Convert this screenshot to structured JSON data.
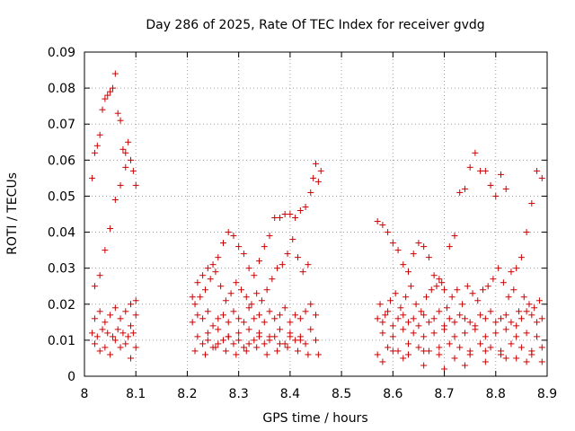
{
  "chart_data": {
    "type": "scatter",
    "title": "Day 286 of 2025, Rate Of TEC Index for receiver gvdg",
    "xlabel": "GPS time / hours",
    "ylabel": "ROTI / TECUs",
    "xlim": [
      8.0,
      8.9
    ],
    "ylim": [
      0.0,
      0.09
    ],
    "xticks": [
      "8",
      "8.1",
      "8.2",
      "8.3",
      "8.4",
      "8.5",
      "8.6",
      "8.7",
      "8.8",
      "8.9"
    ],
    "yticks": [
      "0",
      "0.01",
      "0.02",
      "0.03",
      "0.04",
      "0.05",
      "0.06",
      "0.07",
      "0.08",
      "0.09"
    ],
    "grid": true,
    "marker": "+",
    "color": "#cc0000",
    "series": [
      {
        "name": "ROTI",
        "x": [
          8.015,
          8.02,
          8.025,
          8.03,
          8.035,
          8.04,
          8.045,
          8.05,
          8.055,
          8.06,
          8.065,
          8.07,
          8.075,
          8.08,
          8.085,
          8.09,
          8.095,
          8.1,
          8.02,
          8.03,
          8.04,
          8.05,
          8.06,
          8.07,
          8.08,
          8.09,
          8.1,
          8.02,
          8.03,
          8.04,
          8.05,
          8.06,
          8.07,
          8.08,
          8.09,
          8.1,
          8.015,
          8.025,
          8.035,
          8.045,
          8.055,
          8.065,
          8.075,
          8.085,
          8.095,
          8.02,
          8.04,
          8.06,
          8.08,
          8.1,
          8.03,
          8.05,
          8.07,
          8.09,
          8.21,
          8.22,
          8.23,
          8.24,
          8.25,
          8.26,
          8.27,
          8.28,
          8.29,
          8.3,
          8.31,
          8.32,
          8.33,
          8.34,
          8.35,
          8.36,
          8.37,
          8.38,
          8.39,
          8.4,
          8.41,
          8.42,
          8.43,
          8.44,
          8.45,
          8.46,
          8.215,
          8.225,
          8.235,
          8.245,
          8.255,
          8.265,
          8.275,
          8.285,
          8.295,
          8.305,
          8.315,
          8.325,
          8.335,
          8.345,
          8.355,
          8.365,
          8.375,
          8.385,
          8.395,
          8.405,
          8.415,
          8.425,
          8.435,
          8.445,
          8.455,
          8.21,
          8.22,
          8.23,
          8.24,
          8.25,
          8.26,
          8.27,
          8.28,
          8.29,
          8.3,
          8.31,
          8.32,
          8.33,
          8.34,
          8.35,
          8.36,
          8.37,
          8.38,
          8.39,
          8.4,
          8.41,
          8.42,
          8.43,
          8.44,
          8.45,
          8.22,
          8.24,
          8.26,
          8.28,
          8.3,
          8.32,
          8.34,
          8.36,
          8.38,
          8.4,
          8.42,
          8.44,
          8.23,
          8.25,
          8.27,
          8.29,
          8.31,
          8.33,
          8.35,
          8.37,
          8.39,
          8.41,
          8.43,
          8.45,
          8.215,
          8.235,
          8.255,
          8.275,
          8.295,
          8.315,
          8.335,
          8.355,
          8.375,
          8.395,
          8.415,
          8.435,
          8.455,
          8.24,
          8.26,
          8.28,
          8.3,
          8.32,
          8.34,
          8.36,
          8.38,
          8.4,
          8.42,
          8.57,
          8.58,
          8.59,
          8.6,
          8.61,
          8.62,
          8.63,
          8.64,
          8.65,
          8.66,
          8.67,
          8.68,
          8.69,
          8.7,
          8.71,
          8.72,
          8.73,
          8.74,
          8.75,
          8.76,
          8.77,
          8.78,
          8.79,
          8.8,
          8.81,
          8.82,
          8.83,
          8.84,
          8.85,
          8.86,
          8.87,
          8.88,
          8.89,
          8.575,
          8.585,
          8.595,
          8.605,
          8.615,
          8.625,
          8.635,
          8.645,
          8.655,
          8.665,
          8.675,
          8.685,
          8.695,
          8.705,
          8.715,
          8.725,
          8.735,
          8.745,
          8.755,
          8.765,
          8.775,
          8.785,
          8.795,
          8.805,
          8.815,
          8.825,
          8.835,
          8.845,
          8.855,
          8.865,
          8.875,
          8.885,
          8.57,
          8.58,
          8.59,
          8.6,
          8.61,
          8.62,
          8.63,
          8.64,
          8.65,
          8.66,
          8.67,
          8.68,
          8.69,
          8.7,
          8.71,
          8.72,
          8.73,
          8.74,
          8.75,
          8.76,
          8.77,
          8.78,
          8.79,
          8.8,
          8.81,
          8.82,
          8.83,
          8.84,
          8.85,
          8.86,
          8.87,
          8.88,
          8.89,
          8.58,
          8.6,
          8.62,
          8.64,
          8.66,
          8.68,
          8.7,
          8.72,
          8.74,
          8.76,
          8.78,
          8.8,
          8.82,
          8.84,
          8.86,
          8.88,
          8.59,
          8.61,
          8.63,
          8.65,
          8.67,
          8.69,
          8.71,
          8.73,
          8.75,
          8.77,
          8.79,
          8.81,
          8.83,
          8.85,
          8.87,
          8.89,
          8.57,
          8.6,
          8.63,
          8.66,
          8.69,
          8.72,
          8.75,
          8.78,
          8.81,
          8.84,
          8.87,
          8.58,
          8.62,
          8.66,
          8.7,
          8.74,
          8.78,
          8.82,
          8.86,
          8.89
        ],
        "y": [
          0.055,
          0.062,
          0.064,
          0.067,
          0.074,
          0.077,
          0.078,
          0.079,
          0.08,
          0.084,
          0.073,
          0.071,
          0.063,
          0.062,
          0.065,
          0.06,
          0.057,
          0.053,
          0.025,
          0.028,
          0.035,
          0.041,
          0.049,
          0.053,
          0.058,
          0.02,
          0.021,
          0.016,
          0.018,
          0.015,
          0.017,
          0.019,
          0.016,
          0.018,
          0.014,
          0.017,
          0.012,
          0.011,
          0.013,
          0.012,
          0.011,
          0.013,
          0.012,
          0.011,
          0.012,
          0.009,
          0.008,
          0.01,
          0.009,
          0.008,
          0.007,
          0.006,
          0.008,
          0.005,
          0.022,
          0.026,
          0.028,
          0.03,
          0.031,
          0.033,
          0.037,
          0.04,
          0.039,
          0.036,
          0.034,
          0.03,
          0.028,
          0.032,
          0.036,
          0.039,
          0.044,
          0.044,
          0.045,
          0.045,
          0.044,
          0.046,
          0.047,
          0.051,
          0.059,
          0.057,
          0.02,
          0.022,
          0.024,
          0.027,
          0.029,
          0.025,
          0.021,
          0.023,
          0.026,
          0.024,
          0.022,
          0.02,
          0.023,
          0.021,
          0.024,
          0.027,
          0.03,
          0.031,
          0.034,
          0.038,
          0.033,
          0.029,
          0.031,
          0.055,
          0.054,
          0.015,
          0.017,
          0.016,
          0.018,
          0.014,
          0.016,
          0.017,
          0.015,
          0.018,
          0.016,
          0.015,
          0.019,
          0.016,
          0.017,
          0.015,
          0.018,
          0.016,
          0.017,
          0.019,
          0.015,
          0.017,
          0.016,
          0.018,
          0.02,
          0.017,
          0.011,
          0.012,
          0.013,
          0.011,
          0.012,
          0.013,
          0.012,
          0.011,
          0.013,
          0.012,
          0.011,
          0.013,
          0.009,
          0.008,
          0.01,
          0.009,
          0.008,
          0.01,
          0.009,
          0.011,
          0.009,
          0.01,
          0.009,
          0.01,
          0.007,
          0.006,
          0.008,
          0.007,
          0.006,
          0.007,
          0.008,
          0.006,
          0.007,
          0.008,
          0.007,
          0.006,
          0.006,
          0.01,
          0.009,
          0.011,
          0.01,
          0.009,
          0.011,
          0.01,
          0.009,
          0.011,
          0.01,
          0.043,
          0.042,
          0.04,
          0.037,
          0.035,
          0.031,
          0.029,
          0.034,
          0.037,
          0.036,
          0.033,
          0.028,
          0.027,
          0.024,
          0.036,
          0.039,
          0.051,
          0.052,
          0.058,
          0.062,
          0.057,
          0.057,
          0.053,
          0.05,
          0.056,
          0.052,
          0.029,
          0.03,
          0.033,
          0.04,
          0.048,
          0.057,
          0.055,
          0.02,
          0.017,
          0.021,
          0.023,
          0.019,
          0.022,
          0.025,
          0.02,
          0.018,
          0.022,
          0.024,
          0.025,
          0.026,
          0.019,
          0.022,
          0.024,
          0.02,
          0.025,
          0.023,
          0.021,
          0.024,
          0.025,
          0.027,
          0.03,
          0.026,
          0.022,
          0.024,
          0.018,
          0.022,
          0.02,
          0.019,
          0.021,
          0.016,
          0.015,
          0.018,
          0.014,
          0.016,
          0.017,
          0.015,
          0.016,
          0.014,
          0.017,
          0.015,
          0.016,
          0.018,
          0.014,
          0.016,
          0.015,
          0.017,
          0.016,
          0.015,
          0.014,
          0.017,
          0.016,
          0.018,
          0.015,
          0.016,
          0.017,
          0.015,
          0.014,
          0.016,
          0.018,
          0.017,
          0.015,
          0.016,
          0.012,
          0.011,
          0.013,
          0.012,
          0.011,
          0.012,
          0.013,
          0.011,
          0.012,
          0.013,
          0.011,
          0.012,
          0.013,
          0.011,
          0.012,
          0.011,
          0.008,
          0.007,
          0.009,
          0.008,
          0.007,
          0.008,
          0.009,
          0.008,
          0.007,
          0.009,
          0.008,
          0.007,
          0.009,
          0.008,
          0.007,
          0.008,
          0.006,
          0.007,
          0.006,
          0.007,
          0.006,
          0.005,
          0.006,
          0.007,
          0.006,
          0.005,
          0.006,
          0.004,
          0.005,
          0.003,
          0.002,
          0.003,
          0.004,
          0.005,
          0.004,
          0.004
        ]
      }
    ]
  }
}
